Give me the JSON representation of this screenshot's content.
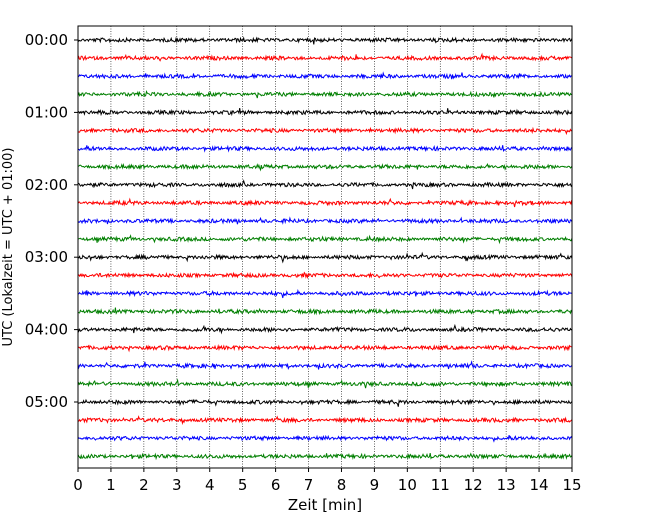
{
  "chart_data": {
    "type": "line",
    "title": "",
    "xlabel": "Zeit  [min]",
    "ylabel": "UTC (Lokalzeit = UTC + 01:00)",
    "xlim": [
      0,
      15
    ],
    "x_ticks": [
      "0",
      "1",
      "2",
      "3",
      "4",
      "5",
      "6",
      "7",
      "8",
      "9",
      "10",
      "11",
      "12",
      "13",
      "14",
      "15"
    ],
    "y_tick_labels": [
      "00:00",
      "01:00",
      "02:00",
      "03:00",
      "04:00",
      "05:00"
    ],
    "grid": "vertical dotted",
    "trace_interval_minutes": 15,
    "trace_count": 24,
    "trace_colors": [
      "#000000",
      "#ff0000",
      "#0000ff",
      "#007f00"
    ],
    "series": [
      {
        "start": "00:00",
        "color": "#000000"
      },
      {
        "start": "00:15",
        "color": "#ff0000"
      },
      {
        "start": "00:30",
        "color": "#0000ff"
      },
      {
        "start": "00:45",
        "color": "#007f00"
      },
      {
        "start": "01:00",
        "color": "#000000"
      },
      {
        "start": "01:15",
        "color": "#ff0000"
      },
      {
        "start": "01:30",
        "color": "#0000ff"
      },
      {
        "start": "01:45",
        "color": "#007f00"
      },
      {
        "start": "02:00",
        "color": "#000000"
      },
      {
        "start": "02:15",
        "color": "#ff0000"
      },
      {
        "start": "02:30",
        "color": "#0000ff"
      },
      {
        "start": "02:45",
        "color": "#007f00"
      },
      {
        "start": "03:00",
        "color": "#000000"
      },
      {
        "start": "03:15",
        "color": "#ff0000"
      },
      {
        "start": "03:30",
        "color": "#0000ff"
      },
      {
        "start": "03:45",
        "color": "#007f00"
      },
      {
        "start": "04:00",
        "color": "#000000"
      },
      {
        "start": "04:15",
        "color": "#ff0000"
      },
      {
        "start": "04:30",
        "color": "#0000ff"
      },
      {
        "start": "04:45",
        "color": "#007f00"
      },
      {
        "start": "05:00",
        "color": "#000000"
      },
      {
        "start": "05:15",
        "color": "#ff0000"
      },
      {
        "start": "05:30",
        "color": "#0000ff"
      },
      {
        "start": "05:45",
        "color": "#007f00"
      }
    ]
  }
}
